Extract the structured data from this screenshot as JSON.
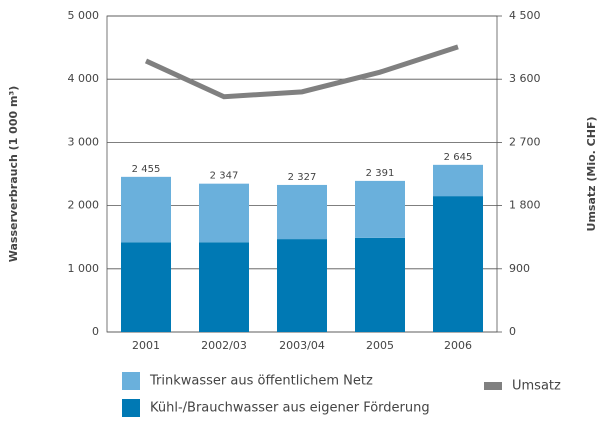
{
  "chart_data": {
    "type": "bar",
    "categories": [
      "2001",
      "2002/03",
      "2003/04",
      "2005",
      "2006"
    ],
    "stacked": true,
    "series": [
      {
        "name": "Kühl-/Brauchwasser aus eigener Förderung",
        "color": "#0079b4",
        "values": [
          1420,
          1420,
          1470,
          1490,
          2150
        ]
      },
      {
        "name": "Trinkwasser aus öffentlichem Netz",
        "color": "#6ab0dc",
        "values": [
          1035,
          927,
          857,
          901,
          495
        ]
      },
      {
        "name": "Umsatz",
        "color": "#808080",
        "axis": "y2",
        "type": "line",
        "values": [
          3860,
          3350,
          3420,
          3700,
          4060
        ]
      }
    ],
    "totals": [
      2455,
      2347,
      2327,
      2391,
      2645
    ],
    "total_labels": [
      "2 455",
      "2 347",
      "2 327",
      "2 391",
      "2 645"
    ],
    "ylabel": "Wasserverbrauch (1 000 m³)",
    "y2label": "Umsatz (Mio. CHF)",
    "ylim": [
      0,
      5000
    ],
    "yticks": [
      0,
      {
        "value": 1000,
        "label": "1 000"
      },
      {
        "value": 2000,
        "label": "2 000"
      },
      {
        "value": 3000,
        "label": "3 000"
      },
      {
        "value": 4000,
        "label": "4 000"
      },
      {
        "value": 5000,
        "label": "5 000"
      }
    ],
    "y2lim": [
      0,
      4500
    ],
    "y2ticks": [
      0,
      900,
      {
        "value": 1800,
        "label": "1 800"
      },
      {
        "value": 2700,
        "label": "2 700"
      },
      {
        "value": 3600,
        "label": "3 600"
      },
      {
        "value": 4500,
        "label": "4 500"
      }
    ],
    "grid": true
  }
}
